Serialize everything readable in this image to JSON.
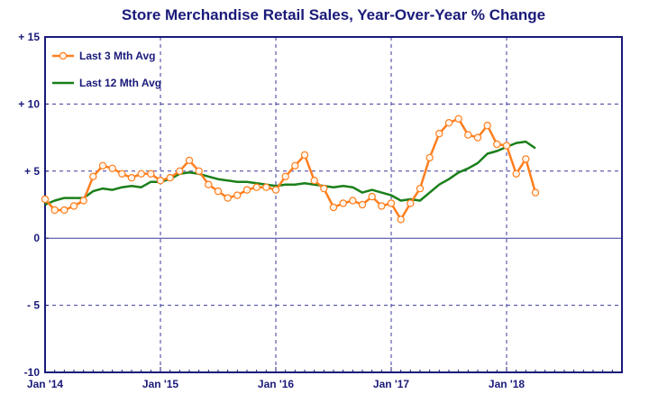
{
  "chart_data": {
    "type": "line",
    "title": "Store Merchandise Retail Sales, Year-Over-Year % Change",
    "ylim": [
      -10,
      15
    ],
    "yticks": [
      15,
      10,
      5,
      0,
      -5,
      -10
    ],
    "ytick_labels": [
      "+ 15",
      "+ 10",
      "+ 5",
      "0",
      "- 5",
      "-10"
    ],
    "xlim": [
      "2014-01",
      "2019-01"
    ],
    "xtick_labels": [
      "Jan '14",
      "Jan '15",
      "Jan '16",
      "Jan '17",
      "Jan '18"
    ],
    "grid": true,
    "legend_position": "top-left",
    "series": [
      {
        "name": "Last 3 Mth Avg",
        "color": "#ff7f1e",
        "marker": "open-circle",
        "x": [
          "2014-01",
          "2014-02",
          "2014-03",
          "2014-04",
          "2014-05",
          "2014-06",
          "2014-07",
          "2014-08",
          "2014-09",
          "2014-10",
          "2014-11",
          "2014-12",
          "2015-01",
          "2015-02",
          "2015-03",
          "2015-04",
          "2015-05",
          "2015-06",
          "2015-07",
          "2015-08",
          "2015-09",
          "2015-10",
          "2015-11",
          "2015-12",
          "2016-01",
          "2016-02",
          "2016-03",
          "2016-04",
          "2016-05",
          "2016-06",
          "2016-07",
          "2016-08",
          "2016-09",
          "2016-10",
          "2016-11",
          "2016-12",
          "2017-01",
          "2017-02",
          "2017-03",
          "2017-04",
          "2017-05",
          "2017-06",
          "2017-07",
          "2017-08",
          "2017-09",
          "2017-10",
          "2017-11",
          "2017-12",
          "2018-01",
          "2018-02",
          "2018-03",
          "2018-04"
        ],
        "values": [
          2.9,
          2.1,
          2.1,
          2.4,
          2.8,
          4.6,
          5.4,
          5.2,
          4.8,
          4.5,
          4.8,
          4.8,
          4.3,
          4.5,
          5.0,
          5.8,
          5.0,
          4.0,
          3.5,
          3.0,
          3.2,
          3.6,
          3.8,
          3.8,
          3.6,
          4.6,
          5.4,
          6.2,
          4.3,
          3.7,
          2.3,
          2.6,
          2.8,
          2.5,
          3.1,
          2.4,
          2.6,
          1.4,
          2.6,
          3.7,
          6.0,
          7.8,
          8.6,
          8.9,
          7.7,
          7.5,
          8.4,
          7.0,
          6.9,
          4.8,
          5.9,
          3.4
        ]
      },
      {
        "name": "Last 12 Mth Avg",
        "color": "#1a7f1a",
        "marker": "none",
        "x": [
          "2014-01",
          "2014-02",
          "2014-03",
          "2014-04",
          "2014-05",
          "2014-06",
          "2014-07",
          "2014-08",
          "2014-09",
          "2014-10",
          "2014-11",
          "2014-12",
          "2015-01",
          "2015-02",
          "2015-03",
          "2015-04",
          "2015-05",
          "2015-06",
          "2015-07",
          "2015-08",
          "2015-09",
          "2015-10",
          "2015-11",
          "2015-12",
          "2016-01",
          "2016-02",
          "2016-03",
          "2016-04",
          "2016-05",
          "2016-06",
          "2016-07",
          "2016-08",
          "2016-09",
          "2016-10",
          "2016-11",
          "2016-12",
          "2017-01",
          "2017-02",
          "2017-03",
          "2017-04",
          "2017-05",
          "2017-06",
          "2017-07",
          "2017-08",
          "2017-09",
          "2017-10",
          "2017-11",
          "2017-12",
          "2018-01",
          "2018-02",
          "2018-03",
          "2018-04"
        ],
        "values": [
          2.5,
          2.8,
          3.0,
          3.0,
          3.0,
          3.5,
          3.7,
          3.6,
          3.8,
          3.9,
          3.8,
          4.2,
          4.2,
          4.4,
          4.8,
          4.9,
          4.8,
          4.6,
          4.4,
          4.3,
          4.2,
          4.2,
          4.1,
          4.0,
          3.9,
          4.0,
          4.0,
          4.1,
          4.0,
          3.9,
          3.8,
          3.9,
          3.8,
          3.4,
          3.6,
          3.4,
          3.2,
          2.8,
          2.9,
          2.8,
          3.4,
          4.0,
          4.4,
          4.9,
          5.2,
          5.6,
          6.3,
          6.5,
          6.8,
          7.1,
          7.2,
          6.7
        ]
      }
    ]
  },
  "colors": {
    "title": "#1a1a7a",
    "axis": "#1a1a7a",
    "grid": "#3a3a9a",
    "frame": "#1a1a7a"
  }
}
